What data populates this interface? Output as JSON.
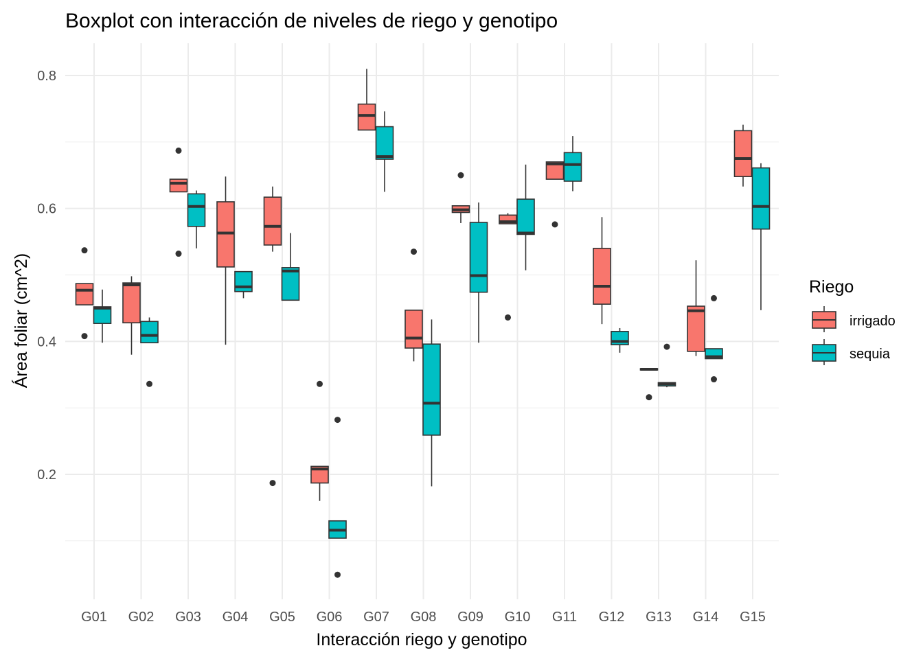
{
  "chart_data": {
    "type": "boxplot",
    "title": "Boxplot con interacción de niveles de riego y genotipo",
    "xlabel": "Interacción riego y genotipo",
    "ylabel": "Área foliar (cm^2)",
    "ylim": [
      0.0,
      0.85
    ],
    "yticks": [
      0.2,
      0.4,
      0.6,
      0.8
    ],
    "ytick_labels": [
      "0.2",
      "0.4",
      "0.6",
      "0.8"
    ],
    "grid": true,
    "legend": {
      "title": "Riego",
      "position": "right",
      "entries": [
        {
          "label": "irrigado",
          "color": "#F8766D"
        },
        {
          "label": "sequia",
          "color": "#00BFC4"
        }
      ]
    },
    "categories": [
      "G01",
      "G02",
      "G03",
      "G04",
      "G05",
      "G06",
      "G07",
      "G08",
      "G09",
      "G10",
      "G11",
      "G12",
      "G13",
      "G14",
      "G15"
    ],
    "series": [
      {
        "name": "irrigado",
        "color": "#F8766D",
        "boxes": [
          {
            "lw": 0.475,
            "q1": 0.455,
            "med": 0.477,
            "q3": 0.487,
            "uw": 0.487,
            "out": [
              0.537,
              0.408
            ]
          },
          {
            "lw": 0.38,
            "q1": 0.428,
            "med": 0.485,
            "q3": 0.488,
            "uw": 0.498,
            "out": []
          },
          {
            "lw": 0.625,
            "q1": 0.625,
            "med": 0.638,
            "q3": 0.644,
            "uw": 0.644,
            "out": [
              0.687,
              0.532
            ]
          },
          {
            "lw": 0.395,
            "q1": 0.512,
            "med": 0.563,
            "q3": 0.61,
            "uw": 0.648,
            "out": []
          },
          {
            "lw": 0.535,
            "q1": 0.545,
            "med": 0.573,
            "q3": 0.617,
            "uw": 0.633,
            "out": [
              0.187
            ]
          },
          {
            "lw": 0.16,
            "q1": 0.187,
            "med": 0.208,
            "q3": 0.212,
            "uw": 0.212,
            "out": [
              0.336
            ]
          },
          {
            "lw": 0.718,
            "q1": 0.718,
            "med": 0.74,
            "q3": 0.757,
            "uw": 0.81,
            "out": []
          },
          {
            "lw": 0.37,
            "q1": 0.39,
            "med": 0.405,
            "q3": 0.447,
            "uw": 0.447,
            "out": [
              0.535
            ]
          },
          {
            "lw": 0.578,
            "q1": 0.594,
            "med": 0.598,
            "q3": 0.604,
            "uw": 0.604,
            "out": [
              0.65
            ]
          },
          {
            "lw": 0.577,
            "q1": 0.577,
            "med": 0.58,
            "q3": 0.59,
            "uw": 0.593,
            "out": [
              0.436
            ]
          },
          {
            "lw": 0.644,
            "q1": 0.644,
            "med": 0.667,
            "q3": 0.67,
            "uw": 0.67,
            "out": [
              0.576
            ]
          },
          {
            "lw": 0.426,
            "q1": 0.456,
            "med": 0.483,
            "q3": 0.54,
            "uw": 0.587,
            "out": []
          },
          {
            "lw": 0.357,
            "q1": 0.357,
            "med": 0.358,
            "q3": 0.359,
            "uw": 0.359,
            "out": [
              0.316
            ]
          },
          {
            "lw": 0.378,
            "q1": 0.385,
            "med": 0.446,
            "q3": 0.453,
            "uw": 0.522,
            "out": []
          },
          {
            "lw": 0.633,
            "q1": 0.648,
            "med": 0.675,
            "q3": 0.717,
            "uw": 0.726,
            "out": []
          }
        ]
      },
      {
        "name": "sequia",
        "color": "#00BFC4",
        "boxes": [
          {
            "lw": 0.398,
            "q1": 0.427,
            "med": 0.45,
            "q3": 0.452,
            "uw": 0.478,
            "out": []
          },
          {
            "lw": 0.398,
            "q1": 0.398,
            "med": 0.409,
            "q3": 0.43,
            "uw": 0.436,
            "out": [
              0.336
            ]
          },
          {
            "lw": 0.54,
            "q1": 0.573,
            "med": 0.603,
            "q3": 0.622,
            "uw": 0.627,
            "out": []
          },
          {
            "lw": 0.465,
            "q1": 0.475,
            "med": 0.482,
            "q3": 0.505,
            "uw": 0.505,
            "out": []
          },
          {
            "lw": 0.462,
            "q1": 0.462,
            "med": 0.506,
            "q3": 0.511,
            "uw": 0.563,
            "out": []
          },
          {
            "lw": 0.104,
            "q1": 0.104,
            "med": 0.116,
            "q3": 0.13,
            "uw": 0.13,
            "out": [
              0.282,
              0.049
            ]
          },
          {
            "lw": 0.625,
            "q1": 0.674,
            "med": 0.678,
            "q3": 0.723,
            "uw": 0.746,
            "out": []
          },
          {
            "lw": 0.182,
            "q1": 0.259,
            "med": 0.307,
            "q3": 0.396,
            "uw": 0.433,
            "out": []
          },
          {
            "lw": 0.398,
            "q1": 0.474,
            "med": 0.499,
            "q3": 0.579,
            "uw": 0.609,
            "out": []
          },
          {
            "lw": 0.507,
            "q1": 0.561,
            "med": 0.563,
            "q3": 0.614,
            "uw": 0.666,
            "out": []
          },
          {
            "lw": 0.626,
            "q1": 0.641,
            "med": 0.666,
            "q3": 0.684,
            "uw": 0.709,
            "out": []
          },
          {
            "lw": 0.383,
            "q1": 0.395,
            "med": 0.4,
            "q3": 0.415,
            "uw": 0.42,
            "out": []
          },
          {
            "lw": 0.331,
            "q1": 0.333,
            "med": 0.336,
            "q3": 0.338,
            "uw": 0.338,
            "out": [
              0.392
            ]
          },
          {
            "lw": 0.374,
            "q1": 0.374,
            "med": 0.377,
            "q3": 0.389,
            "uw": 0.389,
            "out": [
              0.465,
              0.343
            ]
          },
          {
            "lw": 0.447,
            "q1": 0.569,
            "med": 0.603,
            "q3": 0.661,
            "uw": 0.668,
            "out": []
          }
        ]
      }
    ]
  }
}
